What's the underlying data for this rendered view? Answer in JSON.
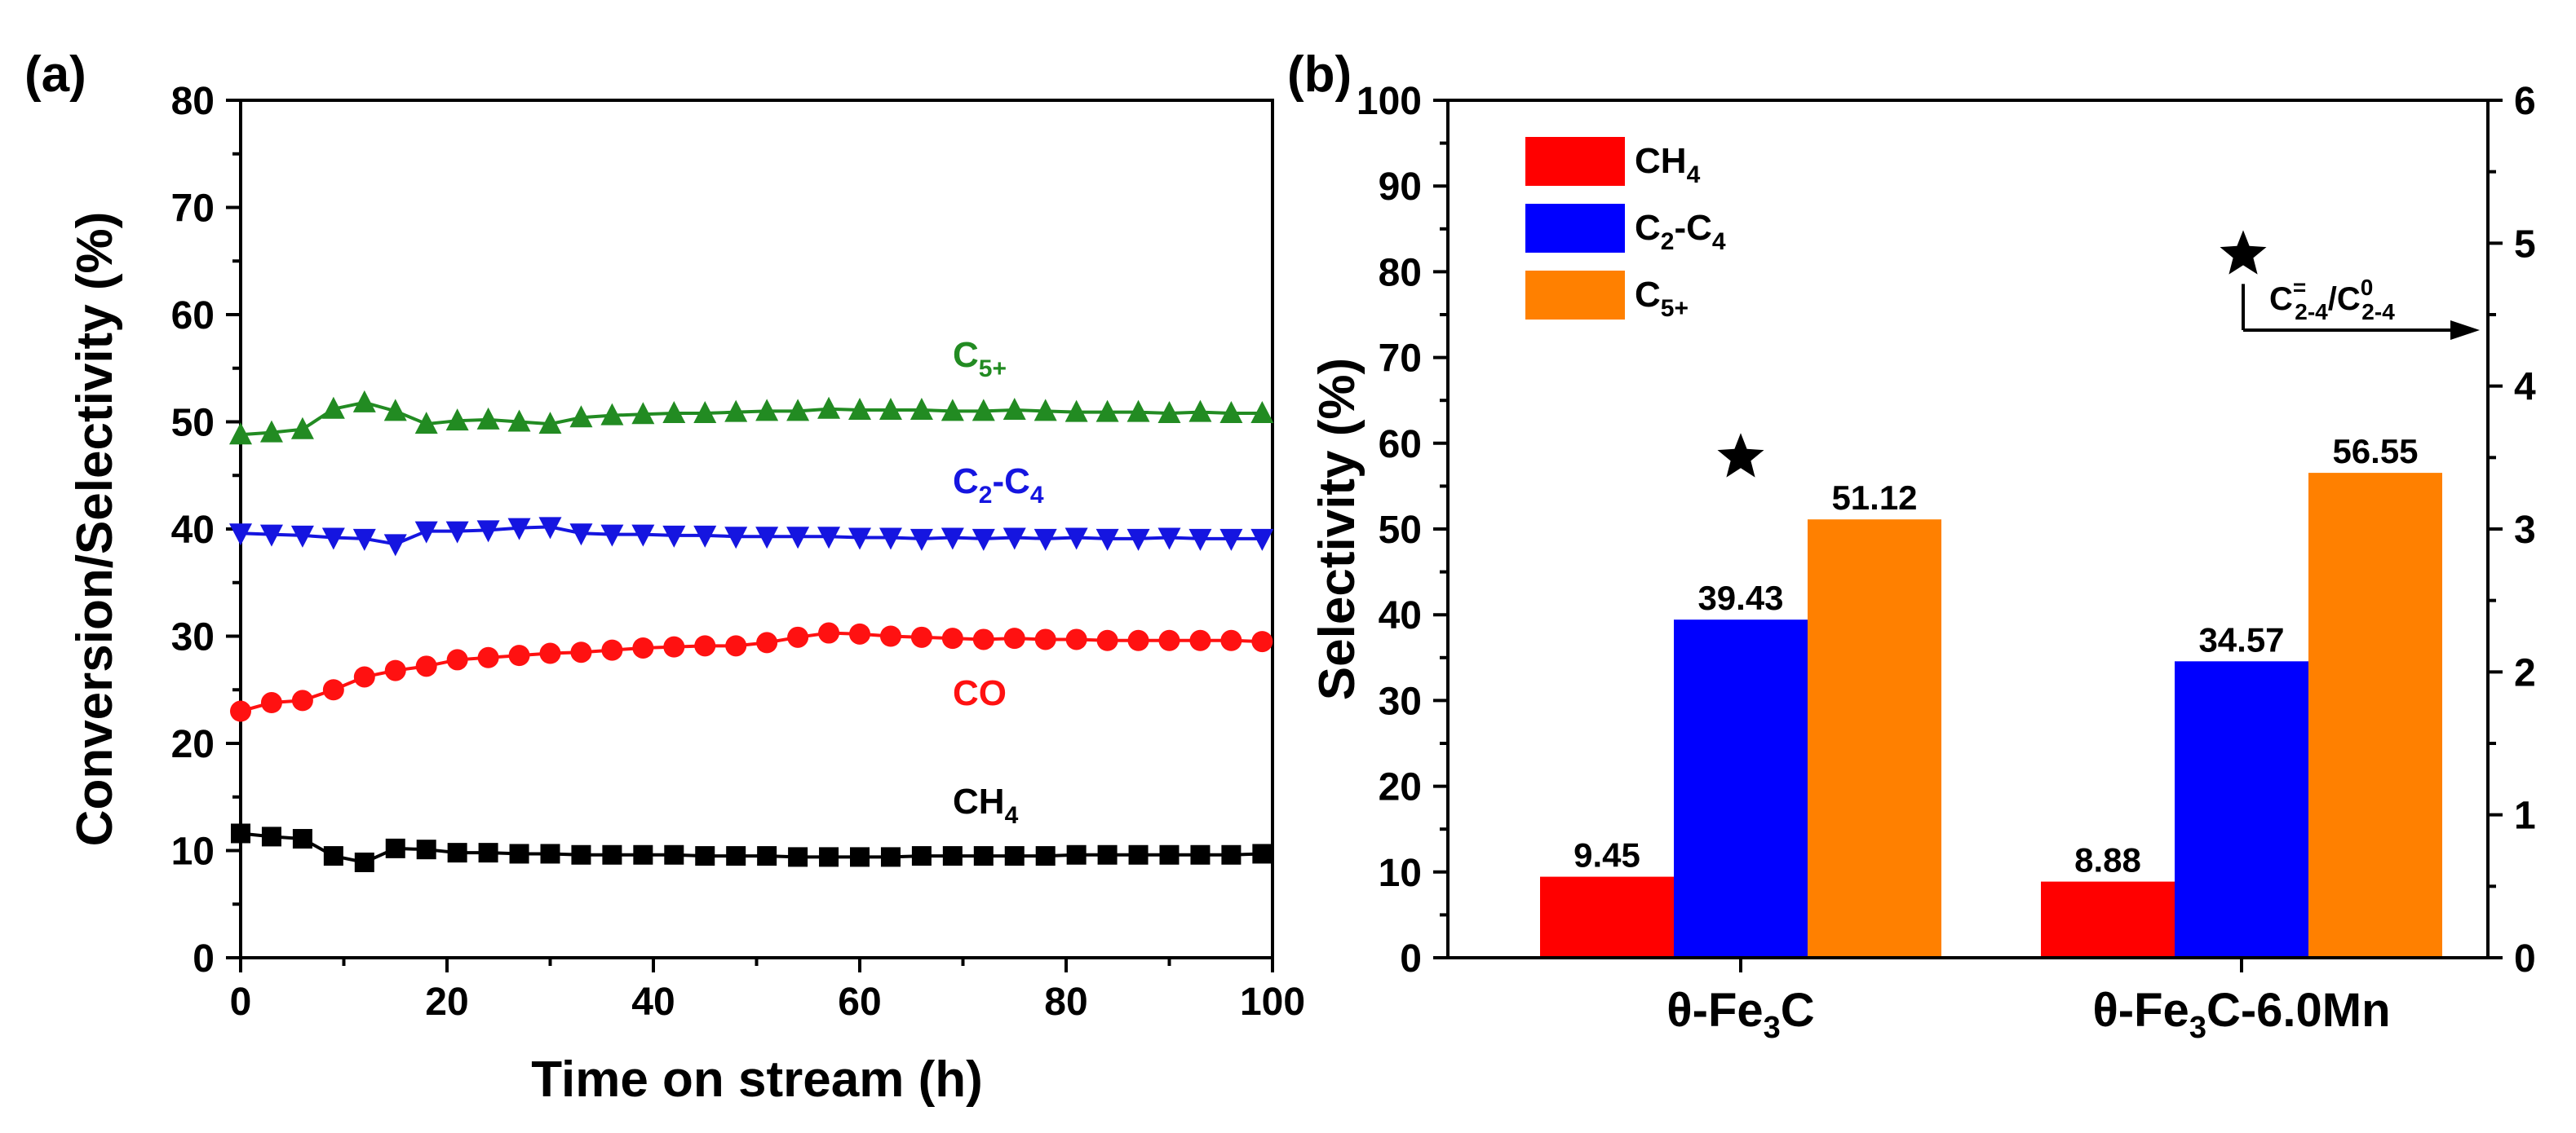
{
  "panel_labels": {
    "a": "(a)",
    "b": "(b)"
  },
  "chart_data": [
    {
      "type": "line",
      "panel": "(a)",
      "xlabel": "Time on stream (h)",
      "ylabel": "Conversion/Selectivity (%)",
      "xlim": [
        0,
        100
      ],
      "ylim": [
        0,
        80
      ],
      "xticks": [
        "0",
        "20",
        "40",
        "60",
        "80",
        "100"
      ],
      "yticks": [
        "0",
        "10",
        "20",
        "30",
        "40",
        "50",
        "60",
        "70",
        "80"
      ],
      "grid": false,
      "series": [
        {
          "name": "C5+",
          "label_base": "C",
          "label_sub": "5+",
          "color": "#228b22",
          "marker": "triangle-up",
          "x": [
            0,
            3,
            6,
            9,
            12,
            15,
            18,
            21,
            24,
            27,
            30,
            33,
            36,
            39,
            42,
            45,
            48,
            51,
            54,
            57,
            60,
            63,
            66,
            69,
            72,
            75,
            78,
            81,
            84,
            87,
            90,
            93,
            96,
            99
          ],
          "y": [
            48.8,
            49.0,
            49.3,
            51.2,
            51.8,
            51.0,
            49.8,
            50.1,
            50.2,
            50.0,
            49.8,
            50.4,
            50.6,
            50.7,
            50.8,
            50.8,
            50.9,
            51.0,
            51.0,
            51.2,
            51.1,
            51.1,
            51.1,
            51.0,
            51.0,
            51.1,
            51.0,
            50.9,
            50.9,
            50.9,
            50.8,
            50.9,
            50.8,
            50.8
          ]
        },
        {
          "name": "C2-C4",
          "label_base": "C",
          "label_sub": "2",
          "label_mid": "-C",
          "label_sub2": "4",
          "color": "#1515e0",
          "marker": "triangle-down",
          "x": [
            0,
            3,
            6,
            9,
            12,
            15,
            18,
            21,
            24,
            27,
            30,
            33,
            36,
            39,
            42,
            45,
            48,
            51,
            54,
            57,
            60,
            63,
            66,
            69,
            72,
            75,
            78,
            81,
            84,
            87,
            90,
            93,
            96,
            99
          ],
          "y": [
            39.6,
            39.5,
            39.4,
            39.2,
            39.1,
            38.6,
            39.8,
            39.8,
            39.9,
            40.1,
            40.2,
            39.6,
            39.5,
            39.5,
            39.4,
            39.4,
            39.3,
            39.3,
            39.3,
            39.3,
            39.2,
            39.2,
            39.1,
            39.2,
            39.1,
            39.2,
            39.1,
            39.2,
            39.1,
            39.1,
            39.2,
            39.1,
            39.1,
            39.1
          ]
        },
        {
          "name": "CO",
          "label_base": "CO",
          "color": "#ff1111",
          "marker": "circle",
          "x": [
            0,
            3,
            6,
            9,
            12,
            15,
            18,
            21,
            24,
            27,
            30,
            33,
            36,
            39,
            42,
            45,
            48,
            51,
            54,
            57,
            60,
            63,
            66,
            69,
            72,
            75,
            78,
            81,
            84,
            87,
            90,
            93,
            96,
            99
          ],
          "y": [
            23.0,
            23.8,
            24.0,
            25.0,
            26.2,
            26.8,
            27.2,
            27.8,
            28.0,
            28.2,
            28.4,
            28.5,
            28.7,
            28.9,
            29.0,
            29.1,
            29.1,
            29.4,
            29.9,
            30.3,
            30.2,
            30.0,
            29.9,
            29.8,
            29.7,
            29.8,
            29.7,
            29.7,
            29.6,
            29.6,
            29.6,
            29.6,
            29.6,
            29.5
          ]
        },
        {
          "name": "CH4",
          "label_base": "CH",
          "label_sub": "4",
          "color": "#000000",
          "marker": "square",
          "x": [
            0,
            3,
            6,
            9,
            12,
            15,
            18,
            21,
            24,
            27,
            30,
            33,
            36,
            39,
            42,
            45,
            48,
            51,
            54,
            57,
            60,
            63,
            66,
            69,
            72,
            75,
            78,
            81,
            84,
            87,
            90,
            93,
            96,
            99
          ],
          "y": [
            11.6,
            11.3,
            11.1,
            9.5,
            8.9,
            10.2,
            10.1,
            9.8,
            9.8,
            9.7,
            9.7,
            9.6,
            9.6,
            9.6,
            9.6,
            9.5,
            9.5,
            9.5,
            9.4,
            9.4,
            9.4,
            9.4,
            9.5,
            9.5,
            9.5,
            9.5,
            9.5,
            9.6,
            9.6,
            9.6,
            9.6,
            9.6,
            9.6,
            9.7
          ]
        }
      ]
    },
    {
      "type": "bar",
      "panel": "(b)",
      "ylabel": "Selectivity (%)",
      "ylim": [
        0,
        100
      ],
      "y2lim": [
        0,
        6
      ],
      "yticks": [
        "0",
        "10",
        "20",
        "30",
        "40",
        "50",
        "60",
        "70",
        "80",
        "90",
        "100"
      ],
      "y2ticks": [
        "0",
        "1",
        "2",
        "3",
        "4",
        "5",
        "6"
      ],
      "grid": false,
      "legend_position": "top-left",
      "categories": [
        {
          "base": "θ-Fe",
          "sub": "3",
          "tail": "C"
        },
        {
          "base": "θ-Fe",
          "sub": "3",
          "tail": "C-6.0Mn"
        }
      ],
      "series": [
        {
          "name": "CH4",
          "legend_base": "CH",
          "legend_sub": "4",
          "color": "#ff0000",
          "values": [
            9.45,
            8.88
          ],
          "labels": [
            "9.45",
            "8.88"
          ]
        },
        {
          "name": "C2-C4",
          "legend_base": "C",
          "legend_sub": "2",
          "legend_mid": "-C",
          "legend_sub2": "4",
          "color": "#0000ff",
          "values": [
            39.43,
            34.57
          ],
          "labels": [
            "39.43",
            "34.57"
          ]
        },
        {
          "name": "C5+",
          "legend_base": "C",
          "legend_sub": "5+",
          "color": "#ff8000",
          "values": [
            51.12,
            56.55
          ],
          "labels": [
            "51.12",
            "56.55"
          ]
        }
      ],
      "ratio_series": {
        "marker": "star",
        "color": "#000000",
        "values": [
          3.5,
          4.92
        ],
        "label": {
          "base": "C",
          "sub1": "2-4",
          "sup1": "=",
          "slash": "/C",
          "sub2": "2-4",
          "sup2": "0"
        }
      }
    }
  ]
}
